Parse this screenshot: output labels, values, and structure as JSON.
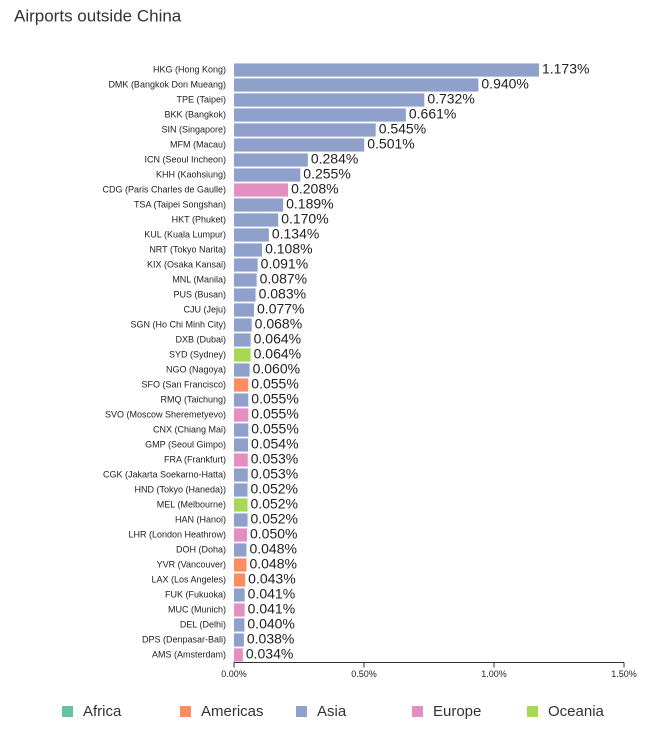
{
  "chart_data": {
    "type": "bar",
    "orientation": "horizontal",
    "title": "Airports outside China",
    "categories": [
      "HKG (Hong Kong)",
      "DMK (Bangkok Don Mueang)",
      "TPE (Taipei)",
      "BKK (Bangkok)",
      "SIN (Singapore)",
      "MFM (Macau)",
      "ICN (Seoul Incheon)",
      "KHH (Kaohsiung)",
      "CDG (Paris Charles de Gaulle)",
      "TSA (Taipei Songshan)",
      "HKT (Phuket)",
      "KUL (Kuala Lumpur)",
      "NRT (Tokyo Narita)",
      "KIX (Osaka Kansai)",
      "MNL (Manila)",
      "PUS (Busan)",
      "CJU (Jeju)",
      "SGN (Ho Chi Minh City)",
      "DXB (Dubai)",
      "SYD (Sydney)",
      "NGO (Nagoya)",
      "SFO (San Francisco)",
      "RMQ (Taichung)",
      "SVO (Moscow Sheremetyevo)",
      "CNX (Chiang Mai)",
      "GMP (Seoul Gimpo)",
      "FRA (Frankfurt)",
      "CGK (Jakarta Soekarno-Hatta)",
      "HND (Tokyo (Haneda))",
      "MEL (Melbourne)",
      "HAN (Hanoi)",
      "LHR (London Heathrow)",
      "DOH (Doha)",
      "YVR (Vancouver)",
      "LAX (Los Angeles)",
      "FUK (Fukuoka)",
      "MUC (Munich)",
      "DEL (Delhi)",
      "DPS (Denpasar-Bali)",
      "AMS (Amsterdam)"
    ],
    "values": [
      1.173,
      0.94,
      0.732,
      0.661,
      0.545,
      0.501,
      0.284,
      0.255,
      0.208,
      0.189,
      0.17,
      0.134,
      0.108,
      0.091,
      0.087,
      0.083,
      0.077,
      0.068,
      0.064,
      0.064,
      0.06,
      0.055,
      0.055,
      0.055,
      0.055,
      0.054,
      0.053,
      0.053,
      0.052,
      0.052,
      0.052,
      0.05,
      0.048,
      0.048,
      0.043,
      0.041,
      0.041,
      0.04,
      0.038,
      0.034
    ],
    "value_labels": [
      "1.173%",
      "0.940%",
      "0.732%",
      "0.661%",
      "0.545%",
      "0.501%",
      "0.284%",
      "0.255%",
      "0.208%",
      "0.189%",
      "0.170%",
      "0.134%",
      "0.108%",
      "0.091%",
      "0.087%",
      "0.083%",
      "0.077%",
      "0.068%",
      "0.064%",
      "0.064%",
      "0.060%",
      "0.055%",
      "0.055%",
      "0.055%",
      "0.055%",
      "0.054%",
      "0.053%",
      "0.053%",
      "0.052%",
      "0.052%",
      "0.052%",
      "0.050%",
      "0.048%",
      "0.048%",
      "0.043%",
      "0.041%",
      "0.041%",
      "0.040%",
      "0.038%",
      "0.034%"
    ],
    "colors": [
      "#8fa0cb",
      "#8fa0cb",
      "#8fa0cb",
      "#8fa0cb",
      "#8fa0cb",
      "#8fa0cb",
      "#8fa0cb",
      "#8fa0cb",
      "#e48fc2",
      "#8fa0cb",
      "#8fa0cb",
      "#8fa0cb",
      "#8fa0cb",
      "#8fa0cb",
      "#8fa0cb",
      "#8fa0cb",
      "#8fa0cb",
      "#8fa0cb",
      "#8fa0cb",
      "#a6d854",
      "#8fa0cb",
      "#fc8d62",
      "#8fa0cb",
      "#e48fc2",
      "#8fa0cb",
      "#8fa0cb",
      "#e48fc2",
      "#8fa0cb",
      "#8fa0cb",
      "#a6d854",
      "#8fa0cb",
      "#e48fc2",
      "#8fa0cb",
      "#fc8d62",
      "#fc8d62",
      "#8fa0cb",
      "#e48fc2",
      "#8fa0cb",
      "#8fa0cb",
      "#e48fc2"
    ],
    "xlim": [
      0,
      1.5
    ],
    "xticks": [
      {
        "value": 0,
        "label": "0.00%"
      },
      {
        "value": 0.5,
        "label": "0.50%"
      },
      {
        "value": 1,
        "label": "1.00%"
      },
      {
        "value": 1.5,
        "label": "1.50%"
      }
    ],
    "legend": [
      {
        "name": "Africa",
        "color": "#66c2a5"
      },
      {
        "name": "Americas",
        "color": "#fc8d62"
      },
      {
        "name": "Asia",
        "color": "#8fa0cb"
      },
      {
        "name": "Europe",
        "color": "#e48fc2"
      },
      {
        "name": "Oceania",
        "color": "#a6d854"
      }
    ]
  }
}
